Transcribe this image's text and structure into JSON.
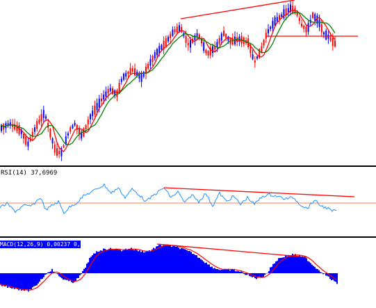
{
  "chart_data": [
    {
      "type": "candlestick",
      "panel": "price",
      "series": [
        {
          "name": "",
          "type": "candlestick"
        },
        {
          "name": "",
          "type": "line",
          "color": "#ff0000"
        },
        {
          "name": "",
          "type": "line",
          "color": "#008000"
        }
      ],
      "up_color": "#0000ff",
      "down_color": "#ff0000",
      "trendlines": [
        {
          "from": "peak-1",
          "to": "peak-2",
          "color": "#ff0000"
        },
        {
          "type": "horizontal",
          "color": "#ff0000"
        }
      ]
    },
    {
      "type": "line",
      "panel": "rsi",
      "label": "RSI(14) 37,6969",
      "series": [
        {
          "name": "",
          "color": "#1e90ff"
        }
      ],
      "level_color": "#ff7f50",
      "trendline_color": "#ff0000"
    },
    {
      "type": "bar",
      "panel": "macd",
      "label": "MACD(12,26,9) 0,00237 0,00087",
      "series": [
        {
          "name": "",
          "type": "bar",
          "color": "#0000ff"
        },
        {
          "name": "",
          "type": "line",
          "color": "#ff0000"
        }
      ],
      "trendline_color": "#ff0000"
    }
  ],
  "colors": {
    "background": "#ffffff",
    "bull": "#0000ff",
    "bear": "#ff0000",
    "ma_fast": "#ff0000",
    "ma_slow": "#008000",
    "rsi": "#1e90ff",
    "rsi_level": "#ff7f50",
    "macd_hist": "#0000ff",
    "macd_signal": "#ff0000",
    "separator": "#000000"
  }
}
